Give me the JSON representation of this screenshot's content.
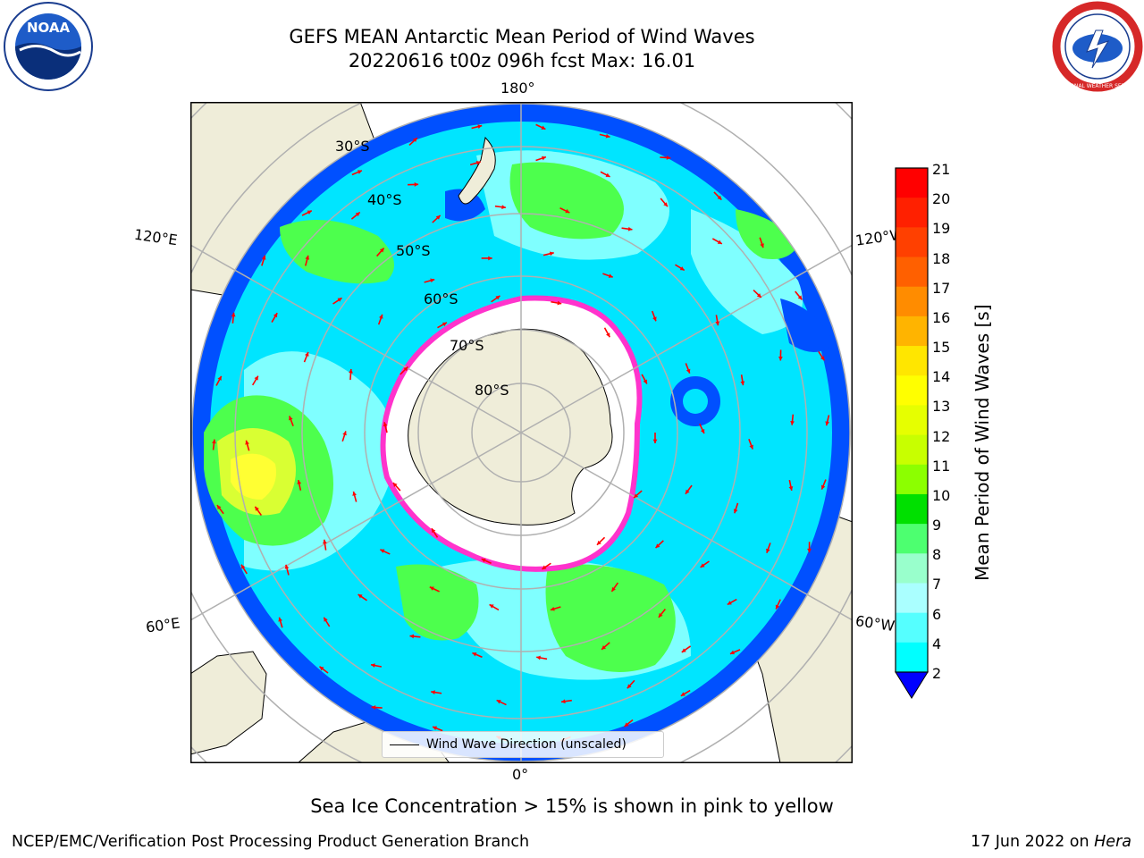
{
  "header": {
    "title_line1": "GEFS MEAN Antarctic Mean Period of Wind Waves",
    "title_line2": "20220616 t00z 096h fcst   Max: 16.01"
  },
  "map": {
    "projection": "south-polar-stereographic",
    "longitude_labels": {
      "top": "180°",
      "bottom": "0°",
      "upper_left": "120°E",
      "upper_right": "120°W",
      "lower_left": "60°E",
      "lower_right": "60°W"
    },
    "latitude_labels": [
      "30°S",
      "40°S",
      "50°S",
      "60°S",
      "70°S",
      "80°S"
    ],
    "legend_text": "Wind Wave Direction (unscaled)",
    "colors": {
      "ocean_blue": "#0050ff",
      "ocean_cyan": "#00e5ff",
      "ocean_lightcyan": "#7fffff",
      "wave_green": "#4dff4d",
      "wave_yellow": "#ffff00",
      "land": "#efedd9",
      "sea_ice_edge": "#ff33cc",
      "arrow": "#ff0000",
      "grid": "#b0b0b0"
    }
  },
  "colorbar": {
    "label": "Mean Period of Wind Waves [s]",
    "ticks": [
      "21",
      "20",
      "19",
      "18",
      "17",
      "16",
      "15",
      "14",
      "13",
      "12",
      "11",
      "10",
      "9",
      "8",
      "7",
      "6",
      "4",
      "2"
    ],
    "tick_values": [
      21,
      20,
      19,
      18,
      17,
      16,
      15,
      14,
      13,
      12,
      11,
      10,
      9,
      8,
      7,
      6,
      4,
      2
    ],
    "colors": [
      "#ff0000",
      "#ff2000",
      "#ff4000",
      "#ff6000",
      "#ff8c00",
      "#ffb400",
      "#ffe600",
      "#ffff00",
      "#e6ff00",
      "#c8ff00",
      "#8cff00",
      "#00e000",
      "#4dff70",
      "#99ffcc",
      "#aaffff",
      "#55ffff",
      "#00ffff",
      "#0080ff",
      "#0000ff"
    ]
  },
  "subtitle": "Sea Ice Concentration > 15% is shown in pink to yellow",
  "footer": {
    "left": "NCEP/EMC/Verification Post Processing Product Generation Branch",
    "right_prefix": "17 Jun 2022 on ",
    "right_italic": "Hera"
  },
  "logos": {
    "noaa_text": "NOAA",
    "nws_text": "NATIONAL WEATHER SERVICE"
  }
}
